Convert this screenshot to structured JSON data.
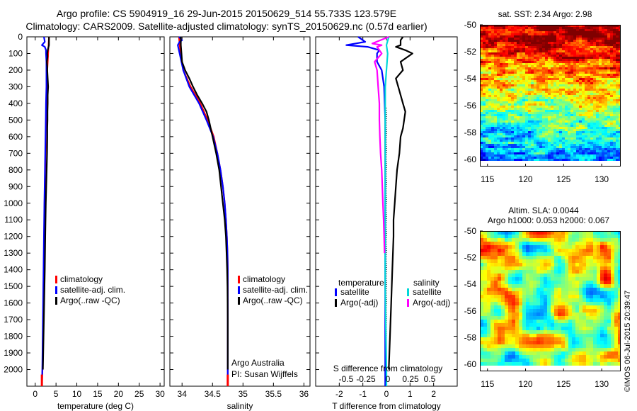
{
  "header": {
    "line1": "Argo profile: CS 5904919_16 29-Jun-2015 20150629_514 55.733S 123.579E",
    "line2": "Climatology: CARS2009. Satellite-adjusted climatology: synTS_20150629.nc (0.57d earlier)"
  },
  "chart_data": [
    {
      "type": "line",
      "name": "temperature-panel",
      "xlabel": "temperature (deg C)",
      "ylabel": "",
      "xlim": [
        -2,
        31
      ],
      "ylim": [
        2100,
        0
      ],
      "xticks": [
        0,
        5,
        10,
        15,
        20,
        25,
        30
      ],
      "yticks": [
        0,
        100,
        200,
        300,
        400,
        500,
        600,
        700,
        800,
        900,
        1000,
        1100,
        1200,
        1300,
        1400,
        1500,
        1600,
        1700,
        1800,
        1900,
        2000
      ],
      "legend": [
        "climatology",
        "satellite-adj. clim.",
        "Argo(..raw -QC)"
      ],
      "series": [
        {
          "name": "climatology",
          "color": "#ff0000",
          "depth": [
            0,
            50,
            100,
            150,
            200,
            300,
            400,
            500,
            700,
            1000,
            1500,
            2000,
            2100
          ],
          "values": [
            3.3,
            3.2,
            3.1,
            3.0,
            2.9,
            2.8,
            2.7,
            2.6,
            2.45,
            2.25,
            2.0,
            1.75,
            1.6
          ]
        },
        {
          "name": "satellite-adj. clim.",
          "color": "#0000ff",
          "depth": [
            0,
            30,
            50,
            60,
            80,
            100,
            150,
            200,
            300,
            400,
            500,
            700,
            1000,
            1500,
            2000,
            2100
          ],
          "values": [
            2.1,
            2.3,
            1.6,
            2.3,
            2.6,
            2.6,
            2.7,
            2.7,
            2.7,
            2.6,
            2.55,
            2.4,
            2.2,
            1.95,
            1.7,
            1.6
          ]
        },
        {
          "name": "Argo(..raw -QC)",
          "color": "#000000",
          "depth": [
            0,
            20,
            50,
            60,
            80,
            100,
            120,
            150,
            180,
            200,
            250,
            300,
            350,
            400,
            450,
            500,
            550,
            600,
            700,
            800,
            900,
            1000,
            1200,
            1400,
            1600,
            1800,
            2000
          ],
          "values": [
            3.3,
            3.3,
            3.3,
            3.2,
            3.0,
            2.9,
            2.95,
            2.8,
            2.9,
            2.9,
            3.0,
            3.1,
            3.0,
            3.0,
            2.95,
            2.95,
            2.9,
            2.9,
            2.85,
            2.75,
            2.65,
            2.55,
            2.4,
            2.3,
            2.15,
            2.0,
            1.85
          ]
        }
      ]
    },
    {
      "type": "line",
      "name": "salinity-panel",
      "xlabel": "salinity",
      "ylabel": "",
      "xlim": [
        33.8,
        36.1
      ],
      "ylim": [
        2100,
        0
      ],
      "xticks": [
        34,
        34.5,
        35,
        35.5,
        36
      ],
      "legend": [
        "climatology",
        "satellite-adj. clim.",
        "Argo(..raw -QC)"
      ],
      "annotation": [
        "Argo Australia",
        "PI: Susan Wijffels"
      ],
      "series": [
        {
          "name": "climatology",
          "color": "#ff0000",
          "depth": [
            0,
            50,
            100,
            200,
            300,
            400,
            500,
            600,
            700,
            800,
            900,
            1000,
            1100,
            1200,
            1300,
            1400,
            1500,
            2000,
            2100
          ],
          "values": [
            33.95,
            33.96,
            33.98,
            34.02,
            34.14,
            34.3,
            34.42,
            34.52,
            34.58,
            34.63,
            34.67,
            34.7,
            34.72,
            34.735,
            34.745,
            34.75,
            34.75,
            34.75,
            34.75
          ]
        },
        {
          "name": "satellite-adj. clim.",
          "color": "#0000ff",
          "depth": [
            0,
            20,
            30,
            50,
            100,
            200,
            300,
            400,
            500,
            600,
            700,
            800,
            900,
            1000,
            1100,
            1200,
            1300,
            1400,
            1500,
            2000,
            2100
          ],
          "values": [
            33.95,
            34.0,
            33.96,
            33.93,
            33.96,
            34.02,
            34.12,
            34.28,
            34.4,
            34.51,
            34.58,
            34.63,
            34.67,
            34.7,
            34.72,
            34.735,
            34.745,
            34.75,
            34.75,
            34.75,
            34.75
          ]
        },
        {
          "name": "Argo(..raw -QC)",
          "color": "#000000",
          "depth": [
            0,
            50,
            100,
            150,
            200,
            250,
            300,
            350,
            400,
            450,
            500,
            600,
            700,
            800,
            900,
            1000,
            1100,
            1200,
            1300,
            1400,
            1500,
            1700,
            1900,
            2000
          ],
          "values": [
            33.98,
            33.98,
            33.99,
            34.0,
            34.05,
            34.12,
            34.18,
            34.25,
            34.33,
            34.4,
            34.44,
            34.5,
            34.56,
            34.61,
            34.64,
            34.67,
            34.7,
            34.72,
            34.73,
            34.74,
            34.745,
            34.75,
            34.75,
            34.75
          ]
        }
      ]
    },
    {
      "type": "line",
      "name": "difference-panel",
      "xlabel": "T difference from climatology",
      "xlim": [
        -3,
        3
      ],
      "ylim": [
        2100,
        0
      ],
      "xticks": [
        -2,
        -1,
        0,
        1,
        2
      ],
      "secondary_xlabel": "S difference from climatology",
      "secondary_xticks": [
        "-0.5",
        "-0.25",
        "0",
        "0.25",
        "0.5"
      ],
      "legend_headers": [
        "temperature",
        "salinity"
      ],
      "legend": [
        "satellite",
        "Argo(-adj)",
        "satellite",
        "Argo(-adj)"
      ],
      "series": [
        {
          "name": "temperature satellite",
          "color": "#0000ff",
          "depth": [
            0,
            30,
            50,
            60,
            80,
            100,
            150,
            200,
            300,
            500,
            1000,
            2000,
            2100
          ],
          "values": [
            -1.2,
            -0.9,
            -1.7,
            -0.8,
            -0.3,
            -0.4,
            -0.4,
            -0.2,
            -0.1,
            -0.05,
            -0.05,
            -0.05,
            -0.05
          ]
        },
        {
          "name": "temperature Argo(-adj)",
          "color": "#000000",
          "depth": [
            0,
            20,
            50,
            60,
            80,
            100,
            150,
            200,
            250,
            300,
            350,
            400,
            450,
            500,
            550,
            600,
            700,
            800,
            900,
            1000,
            1100,
            1200,
            1400,
            1600,
            1800,
            2000
          ],
          "values": [
            0.7,
            0.6,
            0.6,
            0.4,
            0.8,
            1.1,
            0.6,
            0.7,
            0.4,
            0.5,
            0.6,
            0.7,
            0.8,
            0.75,
            0.7,
            0.6,
            0.55,
            0.45,
            0.4,
            0.35,
            0.3,
            0.3,
            0.25,
            0.2,
            0.15,
            0.1
          ]
        },
        {
          "name": "salinity satellite",
          "color": "#00d8d8",
          "depth": [
            0,
            50,
            100,
            200,
            300,
            500,
            700,
            1000,
            1500,
            2000,
            2100
          ],
          "values": [
            0.1,
            0.0,
            0.05,
            0.0,
            -0.05,
            -0.05,
            -0.05,
            -0.05,
            -0.05,
            0.0,
            0.0
          ]
        },
        {
          "name": "salinity Argo(-adj)",
          "color": "#ff00ff",
          "depth": [
            0,
            40,
            50,
            60,
            80,
            100,
            150,
            200,
            300,
            400,
            500,
            600,
            700,
            800,
            1000,
            1100,
            1200,
            1300
          ],
          "values": [
            0.1,
            -0.6,
            -0.2,
            -0.4,
            -0.3,
            -0.2,
            -0.5,
            -0.4,
            -0.35,
            -0.3,
            -0.3,
            -0.28,
            -0.25,
            -0.2,
            -0.15,
            -0.12,
            -0.1,
            -0.08
          ]
        }
      ]
    },
    {
      "type": "heatmap",
      "name": "sst-map",
      "title": "sat. SST: 2.34  Argo: 2.98",
      "xticks": [
        115,
        120,
        125,
        130
      ],
      "yticks": [
        -50,
        -52,
        -54,
        -56,
        -58,
        -60
      ],
      "xlim": [
        114,
        132.5
      ],
      "ylim": [
        -60,
        -50
      ]
    },
    {
      "type": "heatmap",
      "name": "sla-map",
      "title": "Altim. SLA: 0.0044",
      "subtitle": "Argo h1000: 0.053  h2000: 0.067",
      "xticks": [
        115,
        120,
        125,
        130
      ],
      "yticks": [
        -50,
        -52,
        -54,
        -56,
        -58,
        -60
      ],
      "xlim": [
        114,
        132.5
      ],
      "ylim": [
        -60,
        -50
      ]
    }
  ],
  "credit": "©IMOS 06-Jul-2015 20:39:47"
}
